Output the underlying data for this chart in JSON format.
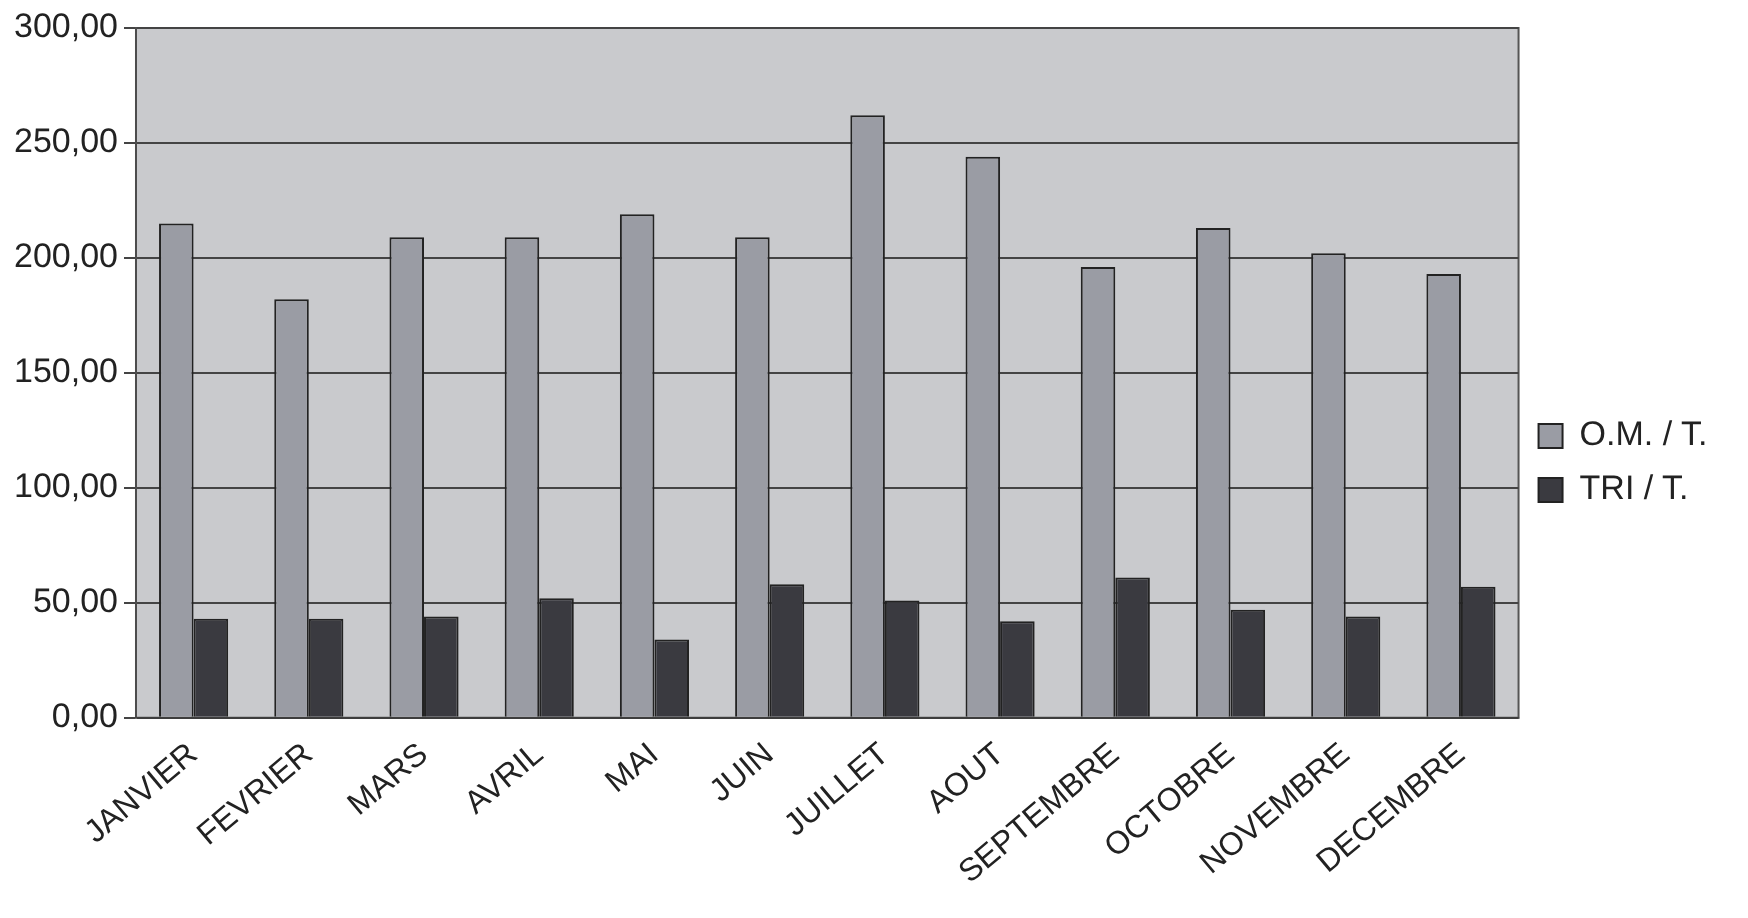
{
  "chart_data": {
    "type": "bar",
    "categories": [
      "JANVIER",
      "FEVRIER",
      "MARS",
      "AVRIL",
      "MAI",
      "JUIN",
      "JUILLET",
      "AOUT",
      "SEPTEMBRE",
      "OCTOBRE",
      "NOVEMBRE",
      "DECEMBRE"
    ],
    "series": [
      {
        "name": "O.M. / T.",
        "color": "#9a9ca4",
        "values": [
          215,
          182,
          209,
          209,
          219,
          209,
          262,
          244,
          196,
          213,
          202,
          193
        ]
      },
      {
        "name": "TRI / T.",
        "color": "#3a3a40",
        "values": [
          43,
          43,
          44,
          52,
          34,
          58,
          51,
          42,
          61,
          47,
          44,
          57
        ]
      }
    ],
    "ylim": [
      0,
      300
    ],
    "yticks": [
      {
        "value": 0,
        "label": "0,00"
      },
      {
        "value": 50,
        "label": "50,00"
      },
      {
        "value": 100,
        "label": "100,00"
      },
      {
        "value": 150,
        "label": "150,00"
      },
      {
        "value": 200,
        "label": "200,00"
      },
      {
        "value": 250,
        "label": "250,00"
      },
      {
        "value": 300,
        "label": "300,00"
      }
    ],
    "grid": "y",
    "legend": "right"
  }
}
